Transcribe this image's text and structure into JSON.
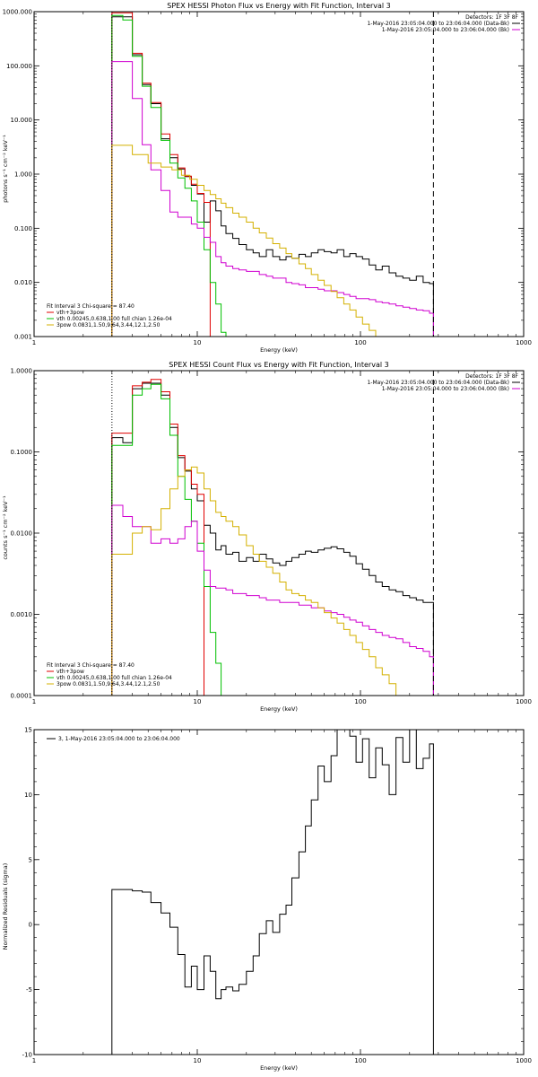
{
  "chart_data": [
    {
      "id": "photon",
      "type": "line",
      "title": "SPEX HESSI Photon Flux vs Energy with Fit Function, Interval 3",
      "xlabel": "Energy (keV)",
      "ylabel": "photons s⁻¹ cm⁻² keV⁻¹",
      "xscale": "log",
      "yscale": "log",
      "xlim": [
        1,
        1000
      ],
      "ylim": [
        0.001,
        1000
      ],
      "xticks": [
        {
          "v": 1,
          "label": "1"
        },
        {
          "v": 10,
          "label": "10"
        },
        {
          "v": 100,
          "label": "100"
        },
        {
          "v": 1000,
          "label": "1000"
        }
      ],
      "yticks": [
        {
          "v": 0.001,
          "label": "0.001"
        },
        {
          "v": 0.01,
          "label": "0.010"
        },
        {
          "v": 0.1,
          "label": "0.100"
        },
        {
          "v": 1,
          "label": "1.000"
        },
        {
          "v": 10,
          "label": "10.000"
        },
        {
          "v": 100,
          "label": "100.000"
        },
        {
          "v": 1000,
          "label": "1000.000"
        }
      ],
      "vlines": [
        {
          "x": 3,
          "style": "dotted"
        },
        {
          "x": 280,
          "style": "dashed"
        }
      ],
      "legend_tr": [
        "Detectors: 1F 3F 8F",
        "1-May-2016 23:05:04.000 to 23:06:04.000 (Data-Bk)",
        "1-May-2016 23:05:04.000 to 23:06:04.000 (Bk)"
      ],
      "legend_tr_swatch": [
        null,
        "#000000",
        "#d000d0"
      ],
      "legend_bl_header": "Fit Interval 3   Chi-square = 87.40",
      "legend_bl": [
        {
          "text": "vth+3pow",
          "color": "#e00000"
        },
        {
          "text": "vth 0.00245,0.638,1.00  full chian 1.26e-04",
          "color": "#00c000"
        },
        {
          "text": "3pow 0.0831,1.50,9.64,3.44,12.1,2.50",
          "color": "#d4b000"
        }
      ],
      "series": [
        {
          "color": "#000000",
          "edges": [
            3,
            3.5,
            4,
            4.6,
            5.2,
            6,
            6.8,
            7.6,
            8.4,
            9.2,
            10,
            11,
            12,
            13,
            14,
            15,
            16.5,
            18,
            20,
            22,
            24,
            26.5,
            29,
            32,
            35,
            38,
            42,
            46,
            50,
            55,
            60,
            66,
            72,
            79,
            86,
            94,
            103,
            113,
            124,
            136,
            150,
            165,
            182,
            200,
            220,
            242,
            265,
            280
          ],
          "values": [
            800,
            800,
            160,
            45,
            20,
            4.5,
            2.0,
            1.25,
            0.9,
            0.62,
            0.43,
            0.13,
            0.32,
            0.21,
            0.11,
            0.08,
            0.065,
            0.05,
            0.04,
            0.035,
            0.03,
            0.04,
            0.03,
            0.026,
            0.03,
            0.028,
            0.033,
            0.03,
            0.035,
            0.04,
            0.037,
            0.035,
            0.04,
            0.03,
            0.034,
            0.03,
            0.027,
            0.021,
            0.017,
            0.02,
            0.015,
            0.013,
            0.012,
            0.011,
            0.013,
            0.01,
            0.0095
          ]
        },
        {
          "color": "#e00000",
          "edges": [
            3,
            3.5,
            4,
            4.6,
            5.2,
            6,
            6.8,
            7.6,
            8.4,
            9.2,
            10,
            11,
            12
          ],
          "values": [
            950,
            950,
            170,
            48,
            21,
            5.5,
            2.3,
            1.3,
            0.92,
            0.65,
            0.44,
            0.3
          ]
        },
        {
          "color": "#00c000",
          "edges": [
            3,
            3.5,
            4,
            4.6,
            5.2,
            6,
            6.8,
            7.6,
            8.4,
            9.2,
            10,
            11,
            12,
            13,
            14,
            15
          ],
          "values": [
            850,
            700,
            150,
            42,
            17,
            4.2,
            1.6,
            0.85,
            0.55,
            0.32,
            0.13,
            0.04,
            0.01,
            0.004,
            0.0012
          ]
        },
        {
          "color": "#d000d0",
          "edges": [
            3,
            3.5,
            4,
            4.6,
            5.2,
            6,
            6.8,
            7.6,
            8.4,
            9.2,
            10,
            11,
            12,
            13,
            14,
            15,
            16.5,
            18,
            20,
            22,
            24,
            26.5,
            29,
            32,
            35,
            38,
            42,
            46,
            50,
            55,
            60,
            66,
            72,
            79,
            86,
            94,
            103,
            113,
            124,
            136,
            150,
            165,
            182,
            200,
            220,
            242,
            265,
            280
          ],
          "values": [
            120,
            120,
            25,
            3.5,
            1.2,
            0.5,
            0.2,
            0.16,
            0.16,
            0.12,
            0.1,
            0.068,
            0.055,
            0.03,
            0.023,
            0.02,
            0.018,
            0.017,
            0.016,
            0.016,
            0.014,
            0.013,
            0.012,
            0.012,
            0.01,
            0.0095,
            0.009,
            0.008,
            0.008,
            0.0075,
            0.007,
            0.007,
            0.0065,
            0.006,
            0.0055,
            0.005,
            0.005,
            0.0048,
            0.0044,
            0.0042,
            0.004,
            0.0037,
            0.0035,
            0.0033,
            0.0031,
            0.003,
            0.0027
          ]
        },
        {
          "color": "#d4b000",
          "edges": [
            3,
            4,
            5,
            6,
            7,
            8,
            9,
            10,
            11,
            12,
            13,
            14,
            15,
            16.5,
            18,
            20,
            22,
            24,
            26.5,
            29,
            32,
            35,
            38,
            42,
            46,
            50,
            55,
            60,
            66,
            72,
            79,
            86,
            94,
            103,
            113,
            124,
            130
          ],
          "values": [
            3.4,
            2.3,
            1.6,
            1.35,
            1.2,
            0.95,
            0.8,
            0.62,
            0.5,
            0.42,
            0.35,
            0.29,
            0.24,
            0.19,
            0.16,
            0.13,
            0.1,
            0.082,
            0.066,
            0.052,
            0.043,
            0.034,
            0.028,
            0.022,
            0.018,
            0.014,
            0.011,
            0.0088,
            0.0068,
            0.0052,
            0.004,
            0.0031,
            0.0023,
            0.0017,
            0.0013,
            0.001
          ]
        }
      ]
    },
    {
      "id": "count",
      "type": "line",
      "title": "SPEX HESSI Count Flux vs Energy with Fit Function, Interval 3",
      "xlabel": "Energy (keV)",
      "ylabel": "counts s⁻¹ cm⁻² keV⁻¹",
      "xscale": "log",
      "yscale": "log",
      "xlim": [
        1,
        1000
      ],
      "ylim": [
        0.0001,
        1
      ],
      "xticks": [
        {
          "v": 1,
          "label": "1"
        },
        {
          "v": 10,
          "label": "10"
        },
        {
          "v": 100,
          "label": "100"
        },
        {
          "v": 1000,
          "label": "1000"
        }
      ],
      "yticks": [
        {
          "v": 0.0001,
          "label": "0.0001"
        },
        {
          "v": 0.001,
          "label": "0.0010"
        },
        {
          "v": 0.01,
          "label": "0.0100"
        },
        {
          "v": 0.1,
          "label": "0.1000"
        },
        {
          "v": 1,
          "label": "1.0000"
        }
      ],
      "vlines": [
        {
          "x": 3,
          "style": "dotted"
        },
        {
          "x": 280,
          "style": "dashed"
        }
      ],
      "legend_tr": [
        "Detectors: 1F 3F 8F",
        "1-May-2016 23:05:04.000 to 23:06:04.000 (Data-Bk)",
        "1-May-2016 23:05:04.000 to 23:06:04.000 (Bk)"
      ],
      "legend_tr_swatch": [
        null,
        "#000000",
        "#d000d0"
      ],
      "legend_bl_header": "Fit Interval 3   Chi-square = 87.40",
      "legend_bl": [
        {
          "text": "vth+3pow",
          "color": "#e00000"
        },
        {
          "text": "vth 0.00245,0.638,1.00  full chian 1.26e-04",
          "color": "#00c000"
        },
        {
          "text": "3pow 0.0831,1.50,9.64,3.44,12.1,2.50",
          "color": "#d4b000"
        }
      ],
      "series": [
        {
          "color": "#000000",
          "edges": [
            3,
            3.5,
            4,
            4.6,
            5.2,
            6,
            6.8,
            7.6,
            8.4,
            9.2,
            10,
            11,
            12,
            13,
            14,
            15,
            16.5,
            18,
            20,
            22,
            24,
            26.5,
            29,
            32,
            35,
            38,
            42,
            46,
            50,
            55,
            60,
            66,
            72,
            79,
            86,
            94,
            103,
            113,
            124,
            136,
            150,
            165,
            182,
            200,
            220,
            242,
            265,
            280
          ],
          "values": [
            0.15,
            0.13,
            0.6,
            0.7,
            0.7,
            0.5,
            0.2,
            0.085,
            0.058,
            0.035,
            0.025,
            0.0125,
            0.01,
            0.0062,
            0.007,
            0.0055,
            0.0058,
            0.0045,
            0.005,
            0.0045,
            0.0055,
            0.0048,
            0.0043,
            0.004,
            0.0045,
            0.005,
            0.0055,
            0.006,
            0.0058,
            0.0062,
            0.0065,
            0.0068,
            0.0064,
            0.0058,
            0.0052,
            0.0042,
            0.0036,
            0.003,
            0.0025,
            0.0022,
            0.002,
            0.0019,
            0.0017,
            0.0016,
            0.0015,
            0.0014,
            0.0014
          ]
        },
        {
          "color": "#e00000",
          "edges": [
            3,
            3.5,
            4,
            4.6,
            5.2,
            6,
            6.8,
            7.6,
            8.4,
            9.2,
            10,
            11
          ],
          "values": [
            0.17,
            0.17,
            0.65,
            0.72,
            0.78,
            0.55,
            0.22,
            0.09,
            0.06,
            0.04,
            0.03
          ]
        },
        {
          "color": "#00c000",
          "edges": [
            3,
            3.5,
            4,
            4.6,
            5.2,
            6,
            6.8,
            7.6,
            8.4,
            9.2,
            10,
            11,
            12,
            13,
            14,
            15
          ],
          "values": [
            0.12,
            0.12,
            0.5,
            0.6,
            0.68,
            0.45,
            0.16,
            0.05,
            0.026,
            0.014,
            0.0075,
            0.0022,
            0.0006,
            0.00025,
            0.0001
          ]
        },
        {
          "color": "#d000d0",
          "edges": [
            3,
            3.5,
            4,
            4.6,
            5.2,
            6,
            6.8,
            7.6,
            8.4,
            9.2,
            10,
            11,
            12,
            13,
            14,
            15,
            16.5,
            18,
            20,
            22,
            24,
            26.5,
            29,
            32,
            35,
            38,
            42,
            46,
            50,
            55,
            60,
            66,
            72,
            79,
            86,
            94,
            103,
            113,
            124,
            136,
            150,
            165,
            182,
            200,
            220,
            242,
            265,
            280
          ],
          "values": [
            0.022,
            0.016,
            0.012,
            0.012,
            0.0075,
            0.0085,
            0.0075,
            0.0085,
            0.012,
            0.014,
            0.006,
            0.0035,
            0.0022,
            0.0021,
            0.0021,
            0.002,
            0.0018,
            0.0018,
            0.0017,
            0.0017,
            0.0016,
            0.0015,
            0.0015,
            0.0014,
            0.0014,
            0.0014,
            0.0013,
            0.0013,
            0.0012,
            0.0012,
            0.0011,
            0.00105,
            0.001,
            0.00092,
            0.00085,
            0.0008,
            0.00072,
            0.00065,
            0.0006,
            0.00055,
            0.00052,
            0.0005,
            0.00045,
            0.0004,
            0.00038,
            0.00035,
            0.0003
          ]
        },
        {
          "color": "#d4b000",
          "edges": [
            3,
            3.5,
            4,
            4.6,
            5.2,
            6,
            6.8,
            7.6,
            8.4,
            9.2,
            10,
            11,
            12,
            13,
            14,
            15,
            16.5,
            18,
            20,
            22,
            24,
            26.5,
            29,
            32,
            35,
            38,
            42,
            46,
            50,
            55,
            60,
            66,
            72,
            79,
            86,
            94,
            103,
            113,
            124,
            136,
            150,
            165,
            175
          ],
          "values": [
            0.0055,
            0.0055,
            0.01,
            0.012,
            0.011,
            0.02,
            0.035,
            0.05,
            0.06,
            0.065,
            0.055,
            0.035,
            0.025,
            0.018,
            0.016,
            0.014,
            0.012,
            0.0095,
            0.007,
            0.0055,
            0.0045,
            0.0038,
            0.0032,
            0.0025,
            0.002,
            0.0018,
            0.0017,
            0.0015,
            0.0014,
            0.0012,
            0.00105,
            0.0009,
            0.00078,
            0.00065,
            0.00055,
            0.00045,
            0.00037,
            0.0003,
            0.00022,
            0.00018,
            0.00014,
            0.0001
          ]
        }
      ]
    },
    {
      "id": "resid",
      "type": "line",
      "title": "",
      "xlabel": "Energy (keV)",
      "ylabel": "Normalized Residuals (sigma)",
      "xscale": "log",
      "yscale": "linear",
      "xlim": [
        1,
        1000
      ],
      "ylim": [
        -10,
        15
      ],
      "xticks": [
        {
          "v": 1,
          "label": "1"
        },
        {
          "v": 10,
          "label": "10"
        },
        {
          "v": 100,
          "label": "100"
        },
        {
          "v": 1000,
          "label": "1000"
        }
      ],
      "yticks": [
        {
          "v": -10,
          "label": "-10"
        },
        {
          "v": -5,
          "label": "-5"
        },
        {
          "v": 0,
          "label": "0"
        },
        {
          "v": 5,
          "label": "5"
        },
        {
          "v": 10,
          "label": "10"
        },
        {
          "v": 15,
          "label": "15"
        }
      ],
      "vlines": [],
      "legend_tl": [
        "3, 1-May-2016 23:05:04.000 to 23:06:04.000"
      ],
      "legend_tl_swatch": [
        "#000000"
      ],
      "series": [
        {
          "color": "#000000",
          "edges": [
            3,
            4,
            4.6,
            5.2,
            6,
            6.8,
            7.6,
            8.4,
            9.2,
            10,
            11,
            12,
            13,
            14,
            15,
            16.5,
            18,
            20,
            22,
            24,
            26.5,
            29,
            32,
            35,
            38,
            42,
            46,
            50,
            55,
            60,
            66,
            72,
            79,
            86,
            94,
            103,
            113,
            124,
            136,
            150,
            165,
            182,
            200,
            220,
            242,
            265,
            280
          ],
          "values": [
            2.7,
            2.6,
            2.5,
            1.7,
            0.9,
            -0.2,
            -2.3,
            -4.8,
            -3.2,
            -5.0,
            -2.4,
            -3.6,
            -5.7,
            -5.0,
            -4.8,
            -5.1,
            -4.6,
            -3.6,
            -2.4,
            -0.7,
            0.3,
            -0.6,
            0.8,
            1.5,
            3.6,
            5.6,
            7.6,
            9.6,
            12.2,
            11.0,
            13.0,
            15.0,
            15.0,
            14.5,
            12.5,
            14.3,
            11.3,
            13.6,
            12.3,
            10.0,
            14.4,
            12.5,
            15.0,
            12.0,
            12.8,
            13.9
          ]
        }
      ]
    }
  ]
}
